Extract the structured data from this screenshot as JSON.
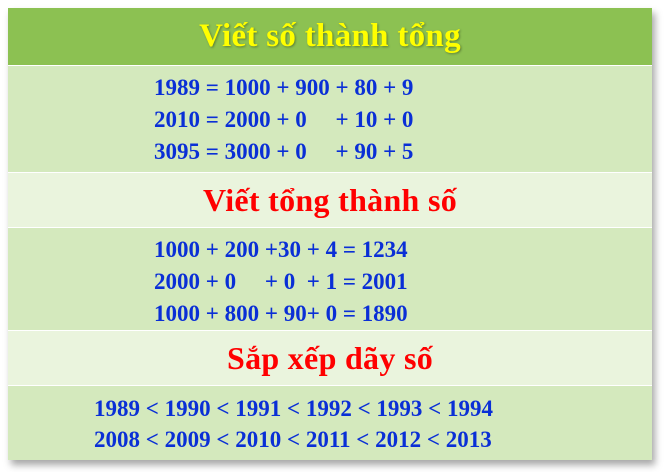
{
  "colors": {
    "header_background": "#8cc152",
    "header_text": "#ffff00",
    "body_band": "#d4e9bd",
    "title_band": "#eaf4dd",
    "section_title_text": "#ff0000",
    "equation_text": "#0a2fd6"
  },
  "header": {
    "title": "Viết số thành tổng"
  },
  "section1": {
    "lines": [
      "1989 = 1000 + 900 + 80 + 9",
      "2010 = 2000 + 0     + 10 + 0",
      "3095 = 3000 + 0     + 90 + 5"
    ]
  },
  "section2": {
    "title": "Viết tổng thành số",
    "lines": [
      "1000 + 200 +30 + 4 = 1234",
      "2000 + 0     + 0  + 1 = 2001",
      "1000 + 800 + 90+ 0 = 1890"
    ]
  },
  "section3": {
    "title": "Sắp xếp dãy số",
    "lines": [
      "1989 < 1990 < 1991 < 1992 < 1993 < 1994",
      "2008 < 2009 < 2010 < 2011 < 2012 < 2013"
    ]
  }
}
